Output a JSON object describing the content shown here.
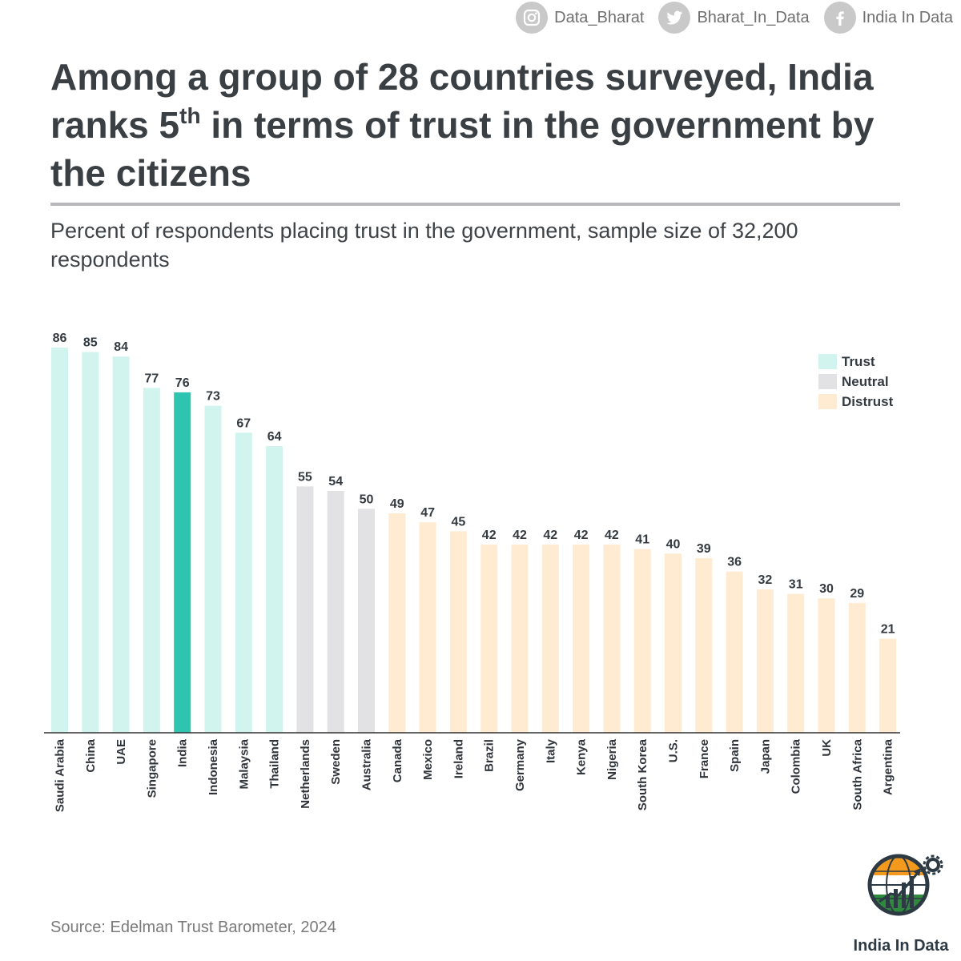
{
  "social": {
    "instagram": "Data_Bharat",
    "twitter": "Bharat_In_Data",
    "facebook": "India In Data"
  },
  "header": {
    "title_part1": "Among a group of 28 countries surveyed, India ranks 5",
    "title_sup": "th",
    "title_part2": " in terms of trust in the government by the citizens",
    "subtitle": "Percent of respondents placing trust in the government, sample size of 32,200 respondents"
  },
  "colors": {
    "trust": "#d2f4ef",
    "trust_highlight": "#2ec4b0",
    "neutral": "#e2e2e4",
    "distrust": "#feebd2",
    "axis": "#333333"
  },
  "chart_data": {
    "type": "bar",
    "title": "Among a group of 28 countries surveyed, India ranks 5th in terms of trust in the government by the citizens",
    "subtitle": "Percent of respondents placing trust in the government, sample size of 32,200 respondents",
    "xlabel": "",
    "ylabel": "",
    "ylim": [
      0,
      86
    ],
    "grid": false,
    "legend_position": "top-right",
    "highlight": "India",
    "categories": [
      "Saudi Arabia",
      "China",
      "UAE",
      "Singapore",
      "India",
      "Indonesia",
      "Malaysia",
      "Thailand",
      "Netherlands",
      "Sweden",
      "Australia",
      "Canada",
      "Mexico",
      "Ireland",
      "Brazil",
      "Germany",
      "Italy",
      "Kenya",
      "Nigeria",
      "South Korea",
      "U.S.",
      "France",
      "Spain",
      "Japan",
      "Colombia",
      "UK",
      "South Africa",
      "Argentina"
    ],
    "values": [
      86,
      85,
      84,
      77,
      76,
      73,
      67,
      64,
      55,
      54,
      50,
      49,
      47,
      45,
      42,
      42,
      42,
      42,
      42,
      41,
      40,
      39,
      36,
      32,
      31,
      30,
      29,
      21
    ],
    "groups": [
      "Trust",
      "Trust",
      "Trust",
      "Trust",
      "Trust",
      "Trust",
      "Trust",
      "Trust",
      "Neutral",
      "Neutral",
      "Neutral",
      "Distrust",
      "Distrust",
      "Distrust",
      "Distrust",
      "Distrust",
      "Distrust",
      "Distrust",
      "Distrust",
      "Distrust",
      "Distrust",
      "Distrust",
      "Distrust",
      "Distrust",
      "Distrust",
      "Distrust",
      "Distrust",
      "Distrust"
    ],
    "legend": [
      "Trust",
      "Neutral",
      "Distrust"
    ]
  },
  "footer": {
    "source": "Source: Edelman Trust Barometer, 2024",
    "brand": "India In Data"
  }
}
